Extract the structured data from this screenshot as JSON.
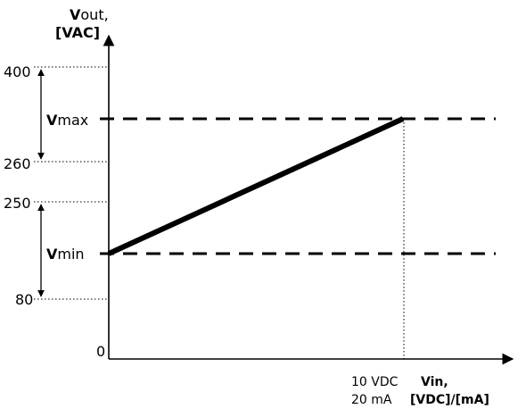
{
  "y_axis": {
    "label_lead": "V",
    "label_rest": "out,",
    "unit": "[VAC]"
  },
  "x_axis": {
    "label_line1": "Vin,",
    "label_line2": "[VDC]/[mA]"
  },
  "ticks": {
    "t400": "400",
    "t260": "260",
    "t250": "250",
    "t80": "80",
    "t0": "0"
  },
  "vmax": {
    "lead": "V",
    "rest": "max"
  },
  "vmin": {
    "lead": "V",
    "rest": "min"
  },
  "x_end": {
    "line1": "10 VDC",
    "line2": "20 mA"
  }
}
